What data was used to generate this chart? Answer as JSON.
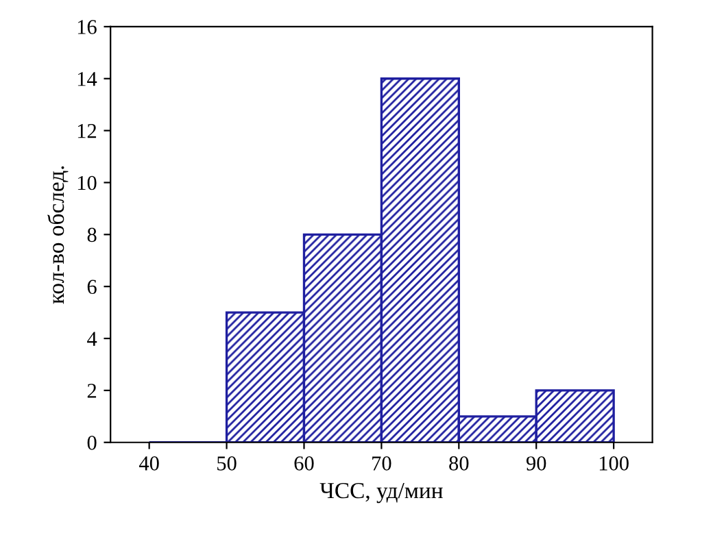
{
  "chart_data": {
    "type": "histogram",
    "xlabel": "ЧСС, уд/мин",
    "ylabel": "кол-во обслед.",
    "bins": [
      40,
      50,
      60,
      70,
      80,
      90,
      100
    ],
    "values": [
      0,
      5,
      8,
      14,
      1,
      2
    ],
    "color": "#1f1fa0",
    "xlim": [
      35,
      105
    ],
    "xticks": [
      40,
      50,
      60,
      70,
      80,
      90,
      100
    ],
    "ylim": [
      0,
      16
    ],
    "yticks": [
      0,
      2,
      4,
      6,
      8,
      10,
      12,
      14,
      16
    ],
    "grid": false
  }
}
